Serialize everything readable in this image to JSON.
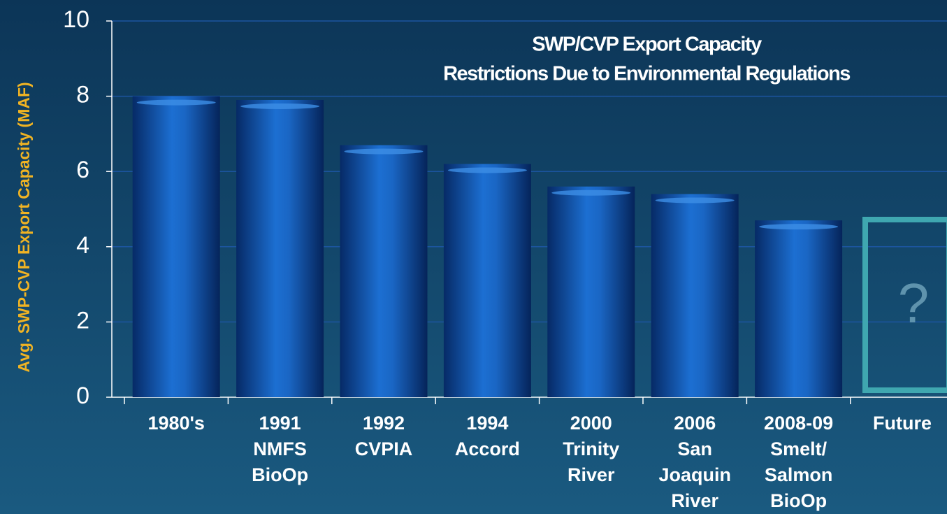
{
  "chart_data": {
    "type": "bar",
    "title": [
      "SWP/CVP Export Capacity",
      "Restrictions Due to Environmental Regulations"
    ],
    "y_label": "Avg. SWP-CVP Export Capacity (MAF)",
    "categories": [
      [
        "1980's"
      ],
      [
        "1991",
        "NMFS",
        "BioOp"
      ],
      [
        "1992",
        "CVPIA"
      ],
      [
        "1994",
        "Accord"
      ],
      [
        "2000",
        "Trinity",
        "River"
      ],
      [
        "2006",
        "San",
        "Joaquin",
        "River"
      ],
      [
        "2008-09",
        "Smelt/",
        "Salmon",
        "BioOp"
      ],
      [
        "Future"
      ]
    ],
    "values": [
      8.0,
      7.9,
      6.7,
      6.2,
      5.6,
      5.4,
      4.7,
      null
    ],
    "annotation": "?",
    "color": "#1a64c0",
    "ylim": [
      0,
      10
    ],
    "yticks": [
      0,
      2,
      4,
      6,
      8,
      10
    ],
    "grid": true
  }
}
